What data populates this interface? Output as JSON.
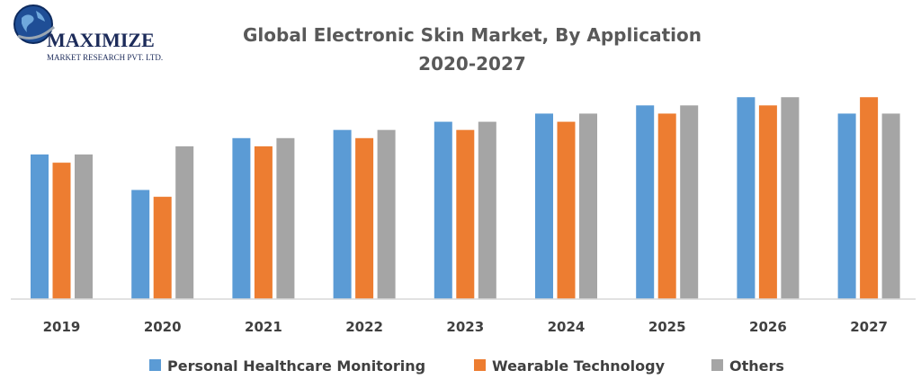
{
  "logo": {
    "name": "MAXIMIZE",
    "subtitle": "MARKET RESEARCH PVT. LTD."
  },
  "colors": {
    "series": [
      "#5b9bd5",
      "#ed7d31",
      "#a5a5a5"
    ]
  },
  "chart_data": {
    "type": "bar",
    "title": "Global Electronic Skin Market, By Application",
    "subtitle": "2020-2027",
    "categories": [
      "2019",
      "2020",
      "2021",
      "2022",
      "2023",
      "2024",
      "2025",
      "2026",
      "2027"
    ],
    "series": [
      {
        "name": "Personal Healthcare Monitoring",
        "values": [
          5.3,
          4.0,
          5.9,
          6.2,
          6.5,
          6.8,
          7.1,
          7.4,
          6.8
        ]
      },
      {
        "name": "Wearable Technology",
        "values": [
          5.0,
          3.75,
          5.6,
          5.9,
          6.2,
          6.5,
          6.8,
          7.1,
          7.4
        ]
      },
      {
        "name": "Others",
        "values": [
          5.3,
          5.6,
          5.9,
          6.2,
          6.5,
          6.8,
          7.1,
          7.4,
          6.8
        ]
      }
    ],
    "ylim": [
      0,
      8
    ],
    "grid": false,
    "legend": "bottom",
    "xlabel": "",
    "ylabel": ""
  }
}
